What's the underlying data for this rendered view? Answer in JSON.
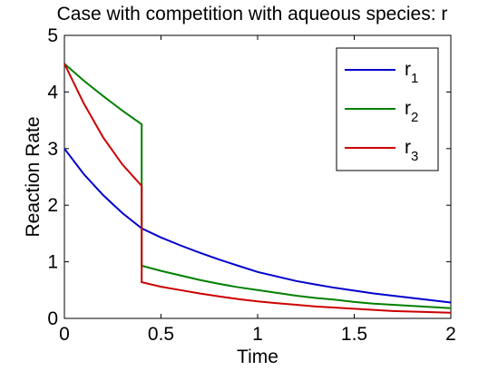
{
  "chart_data": {
    "type": "line",
    "title": "Case with competition with aqueous species: r",
    "xlabel": "Time",
    "ylabel": "Reaction Rate",
    "xlim": [
      0,
      2
    ],
    "ylim": [
      0,
      5
    ],
    "xticks": [
      "0",
      "0.5",
      "1",
      "1.5",
      "2"
    ],
    "yticks": [
      "0",
      "1",
      "2",
      "3",
      "4",
      "5"
    ],
    "xtick_values": [
      0,
      0.5,
      1,
      1.5,
      2
    ],
    "ytick_values": [
      0,
      1,
      2,
      3,
      4,
      5
    ],
    "grid": false,
    "legend_position": "top-right",
    "series": [
      {
        "name": "r",
        "subscript": "1",
        "color": "#0000cc",
        "x": [
          0,
          0.1,
          0.2,
          0.3,
          0.4,
          0.5,
          0.6,
          0.7,
          0.8,
          0.9,
          1.0,
          1.1,
          1.2,
          1.3,
          1.4,
          1.5,
          1.6,
          1.7,
          1.8,
          1.9,
          2.0
        ],
        "y": [
          3.0,
          2.55,
          2.18,
          1.86,
          1.59,
          1.43,
          1.29,
          1.16,
          1.04,
          0.93,
          0.82,
          0.74,
          0.66,
          0.6,
          0.54,
          0.49,
          0.44,
          0.4,
          0.36,
          0.32,
          0.28
        ]
      },
      {
        "name": "r",
        "subscript": "2",
        "color": "#008000",
        "x": [
          0,
          0.1,
          0.2,
          0.3,
          0.4,
          0.4,
          0.5,
          0.6,
          0.7,
          0.8,
          0.9,
          1.0,
          1.1,
          1.2,
          1.3,
          1.4,
          1.5,
          1.6,
          1.7,
          1.8,
          1.9,
          2.0
        ],
        "y": [
          4.5,
          4.2,
          3.93,
          3.67,
          3.43,
          0.93,
          0.84,
          0.76,
          0.68,
          0.61,
          0.55,
          0.5,
          0.45,
          0.4,
          0.36,
          0.33,
          0.29,
          0.26,
          0.24,
          0.22,
          0.2,
          0.18
        ]
      },
      {
        "name": "r",
        "subscript": "3",
        "color": "#cc0000",
        "x": [
          0,
          0.1,
          0.2,
          0.3,
          0.4,
          0.4,
          0.5,
          0.6,
          0.7,
          0.8,
          0.9,
          1.0,
          1.1,
          1.2,
          1.3,
          1.4,
          1.5,
          1.6,
          1.7,
          1.8,
          1.9,
          2.0
        ],
        "y": [
          4.5,
          3.8,
          3.2,
          2.72,
          2.34,
          0.64,
          0.56,
          0.5,
          0.44,
          0.39,
          0.34,
          0.3,
          0.27,
          0.24,
          0.21,
          0.19,
          0.17,
          0.15,
          0.13,
          0.12,
          0.11,
          0.1
        ]
      }
    ]
  }
}
